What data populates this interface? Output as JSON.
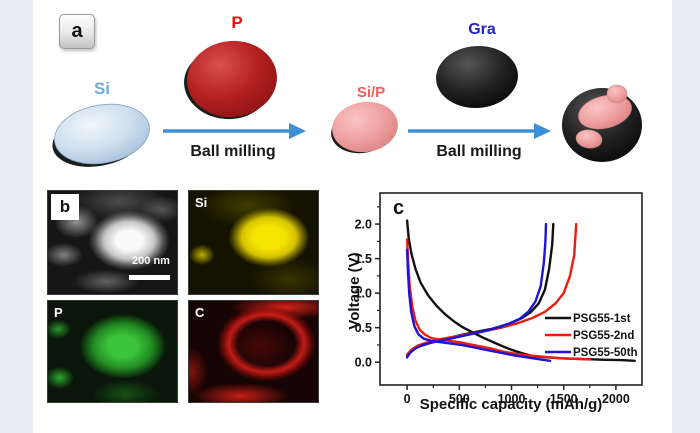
{
  "page": {
    "background": "#ffffff",
    "side_strip_color": "#e9edf6"
  },
  "figure": {
    "panel_a": {
      "label": "a",
      "si_label": "Si",
      "p_label": "P",
      "sip_label": "Si/P",
      "gra_label": "Gra",
      "arrow1_label": "Ball milling",
      "arrow2_label": "Ball milling",
      "colors": {
        "si_text": "#74aade",
        "p_text": "#e8140c",
        "sip_text": "#ec6060",
        "gra_text": "#2422c8",
        "arrow": "#3d8fd6",
        "si_fill": "#c9dcee",
        "p_fill": "#b42020",
        "pink_fill": "#efa3a3",
        "graphite_fill": "#171717"
      }
    },
    "panel_b": {
      "label": "b",
      "scale_bar_text": "200 nm",
      "maps": [
        {
          "element": "Si"
        },
        {
          "element": "P"
        },
        {
          "element": "C"
        }
      ]
    },
    "panel_c": {
      "label": "c"
    }
  },
  "chart_data": {
    "type": "line",
    "title": "",
    "xlabel": "Specific capacity (mAh/g)",
    "ylabel": "Voltage (V)",
    "xlim": [
      -260,
      2250
    ],
    "ylim": [
      -0.33,
      2.45
    ],
    "x_ticks": [
      0,
      500,
      1000,
      1500,
      2000
    ],
    "x_minor_ticks": [
      250,
      750,
      1250,
      1750
    ],
    "y_ticks": [
      0.0,
      0.5,
      1.0,
      1.5,
      2.0
    ],
    "y_minor_ticks": [
      0.25,
      0.75,
      1.25,
      1.75,
      2.25
    ],
    "grid": false,
    "legend_position": "inside-right-middle",
    "series": [
      {
        "name": "PSG55-1st",
        "color": "#111111",
        "segments": {
          "discharge": [
            [
              0,
              2.05
            ],
            [
              15,
              1.8
            ],
            [
              40,
              1.58
            ],
            [
              80,
              1.35
            ],
            [
              130,
              1.15
            ],
            [
              200,
              0.97
            ],
            [
              280,
              0.82
            ],
            [
              360,
              0.7
            ],
            [
              450,
              0.59
            ],
            [
              540,
              0.5
            ],
            [
              630,
              0.43
            ],
            [
              720,
              0.36
            ],
            [
              810,
              0.3
            ],
            [
              900,
              0.24
            ],
            [
              1000,
              0.18
            ],
            [
              1100,
              0.13
            ],
            [
              1200,
              0.09
            ],
            [
              1350,
              0.07
            ],
            [
              1500,
              0.055
            ],
            [
              1700,
              0.045
            ],
            [
              1900,
              0.035
            ],
            [
              2050,
              0.03
            ],
            [
              2180,
              0.02
            ]
          ],
          "charge": [
            [
              0,
              0.09
            ],
            [
              40,
              0.17
            ],
            [
              100,
              0.22
            ],
            [
              200,
              0.27
            ],
            [
              300,
              0.31
            ],
            [
              400,
              0.35
            ],
            [
              500,
              0.39
            ],
            [
              600,
              0.42
            ],
            [
              700,
              0.45
            ],
            [
              800,
              0.48
            ],
            [
              900,
              0.52
            ],
            [
              1000,
              0.57
            ],
            [
              1100,
              0.64
            ],
            [
              1180,
              0.72
            ],
            [
              1260,
              0.85
            ],
            [
              1320,
              1.05
            ],
            [
              1360,
              1.35
            ],
            [
              1390,
              1.7
            ],
            [
              1400,
              2.0
            ]
          ]
        }
      },
      {
        "name": "PSG55-2nd",
        "color": "#ee1c0c",
        "segments": {
          "discharge": [
            [
              0,
              1.78
            ],
            [
              10,
              1.45
            ],
            [
              25,
              1.1
            ],
            [
              50,
              0.8
            ],
            [
              80,
              0.6
            ],
            [
              120,
              0.47
            ],
            [
              170,
              0.4
            ],
            [
              230,
              0.35
            ],
            [
              300,
              0.33
            ],
            [
              400,
              0.31
            ],
            [
              500,
              0.29
            ],
            [
              600,
              0.26
            ],
            [
              700,
              0.23
            ],
            [
              800,
              0.2
            ],
            [
              900,
              0.16
            ],
            [
              1000,
              0.13
            ],
            [
              1150,
              0.1
            ],
            [
              1300,
              0.08
            ],
            [
              1450,
              0.06
            ],
            [
              1600,
              0.05
            ],
            [
              1750,
              0.04
            ]
          ],
          "charge": [
            [
              0,
              0.11
            ],
            [
              40,
              0.18
            ],
            [
              100,
              0.24
            ],
            [
              200,
              0.29
            ],
            [
              300,
              0.33
            ],
            [
              450,
              0.37
            ],
            [
              600,
              0.41
            ],
            [
              750,
              0.45
            ],
            [
              900,
              0.5
            ],
            [
              1050,
              0.56
            ],
            [
              1200,
              0.64
            ],
            [
              1320,
              0.73
            ],
            [
              1420,
              0.85
            ],
            [
              1500,
              1.0
            ],
            [
              1560,
              1.25
            ],
            [
              1600,
              1.55
            ],
            [
              1620,
              2.0
            ]
          ]
        }
      },
      {
        "name": "PSG55-50th",
        "color": "#2013d8",
        "segments": {
          "discharge": [
            [
              0,
              1.63
            ],
            [
              8,
              1.3
            ],
            [
              20,
              1.0
            ],
            [
              40,
              0.72
            ],
            [
              70,
              0.52
            ],
            [
              110,
              0.4
            ],
            [
              160,
              0.34
            ],
            [
              230,
              0.31
            ],
            [
              320,
              0.29
            ],
            [
              420,
              0.27
            ],
            [
              520,
              0.25
            ],
            [
              620,
              0.22
            ],
            [
              720,
              0.19
            ],
            [
              820,
              0.16
            ],
            [
              920,
              0.13
            ],
            [
              1020,
              0.1
            ],
            [
              1150,
              0.07
            ],
            [
              1280,
              0.04
            ],
            [
              1370,
              0.02
            ]
          ],
          "charge": [
            [
              0,
              0.07
            ],
            [
              30,
              0.14
            ],
            [
              80,
              0.2
            ],
            [
              150,
              0.25
            ],
            [
              250,
              0.29
            ],
            [
              380,
              0.33
            ],
            [
              500,
              0.37
            ],
            [
              620,
              0.41
            ],
            [
              740,
              0.45
            ],
            [
              860,
              0.5
            ],
            [
              980,
              0.56
            ],
            [
              1080,
              0.63
            ],
            [
              1160,
              0.73
            ],
            [
              1230,
              0.88
            ],
            [
              1280,
              1.1
            ],
            [
              1310,
              1.45
            ],
            [
              1325,
              1.75
            ],
            [
              1330,
              2.0
            ]
          ]
        }
      }
    ]
  }
}
